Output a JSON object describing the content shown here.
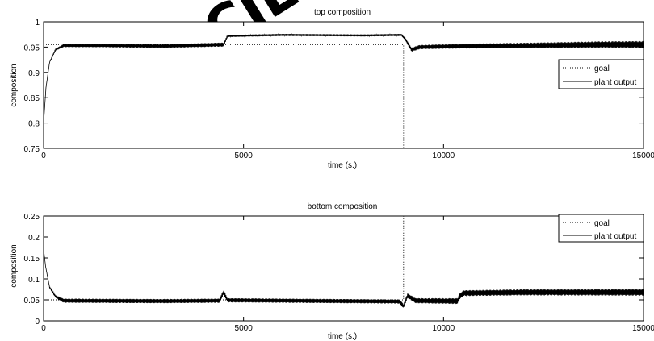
{
  "watermark": {
    "text": "SCIENCE",
    "color": "#f1e7d2"
  },
  "chart_data": [
    {
      "type": "line",
      "title": "top composition",
      "xlabel": "time (s.)",
      "ylabel": "composition",
      "xlim": [
        0,
        15000
      ],
      "ylim": [
        0.75,
        1
      ],
      "xticks": [
        0,
        5000,
        10000,
        15000
      ],
      "xtick_labels": [
        "0",
        "5000",
        "10000",
        "15000"
      ],
      "yticks": [
        0.75,
        0.8,
        0.85,
        0.9,
        0.95,
        1
      ],
      "ytick_labels": [
        "0.75",
        "0.8",
        "0.85",
        "0.9",
        "0.95",
        "1"
      ],
      "grid": false,
      "legend_position": "right",
      "series": [
        {
          "name": "goal",
          "style": "dotted",
          "color": "#000000",
          "points": [
            [
              0,
              0.955
            ],
            [
              9000,
              0.955
            ],
            [
              9000,
              0.75
            ]
          ]
        },
        {
          "name": "plant output",
          "style": "solid",
          "color": "#000000",
          "points": [
            [
              0,
              0.8
            ],
            [
              60,
              0.87
            ],
            [
              150,
              0.92
            ],
            [
              300,
              0.945
            ],
            [
              500,
              0.953
            ],
            [
              1500,
              0.953
            ],
            [
              3000,
              0.952
            ],
            [
              4500,
              0.955
            ],
            [
              4600,
              0.972
            ],
            [
              6000,
              0.974
            ],
            [
              8000,
              0.973
            ],
            [
              8950,
              0.974
            ],
            [
              9050,
              0.965
            ],
            [
              9200,
              0.945
            ],
            [
              9400,
              0.95
            ],
            [
              10500,
              0.952
            ],
            [
              12000,
              0.953
            ],
            [
              14000,
              0.955
            ],
            [
              15000,
              0.955
            ]
          ],
          "oscillation": [
            [
              0,
              0
            ],
            [
              500,
              0.003
            ],
            [
              4500,
              0.004
            ],
            [
              4600,
              0.002
            ],
            [
              8950,
              0.002
            ],
            [
              9200,
              0.004
            ],
            [
              13000,
              0.006
            ],
            [
              15000,
              0.007
            ]
          ]
        }
      ]
    },
    {
      "type": "line",
      "title": "bottom composition",
      "xlabel": "time (s.)",
      "ylabel": "composition",
      "xlim": [
        0,
        15000
      ],
      "ylim": [
        0,
        0.25
      ],
      "xticks": [
        0,
        5000,
        10000,
        15000
      ],
      "xtick_labels": [
        "0",
        "5000",
        "10000",
        "15000"
      ],
      "yticks": [
        0,
        0.05,
        0.1,
        0.15,
        0.2,
        0.25
      ],
      "ytick_labels": [
        "0",
        "0.05",
        "0.1",
        "0.15",
        "0.2",
        "0.25"
      ],
      "grid": false,
      "legend_position": "top-right",
      "series": [
        {
          "name": "goal",
          "style": "dotted",
          "color": "#000000",
          "points": [
            [
              0,
              0.05
            ],
            [
              9000,
              0.05
            ],
            [
              9000,
              0.25
            ]
          ]
        },
        {
          "name": "plant output",
          "style": "solid",
          "color": "#000000",
          "points": [
            [
              0,
              0.17
            ],
            [
              50,
              0.13
            ],
            [
              150,
              0.08
            ],
            [
              300,
              0.058
            ],
            [
              500,
              0.048
            ],
            [
              3000,
              0.047
            ],
            [
              4400,
              0.048
            ],
            [
              4500,
              0.068
            ],
            [
              4600,
              0.049
            ],
            [
              8900,
              0.046
            ],
            [
              9000,
              0.035
            ],
            [
              9100,
              0.06
            ],
            [
              9300,
              0.048
            ],
            [
              10350,
              0.047
            ],
            [
              10400,
              0.058
            ],
            [
              10500,
              0.066
            ],
            [
              12000,
              0.068
            ],
            [
              15000,
              0.068
            ]
          ],
          "oscillation": [
            [
              0,
              0
            ],
            [
              500,
              0.005
            ],
            [
              8900,
              0.005
            ],
            [
              9200,
              0.006
            ],
            [
              10400,
              0.007
            ],
            [
              15000,
              0.008
            ]
          ]
        }
      ]
    }
  ]
}
